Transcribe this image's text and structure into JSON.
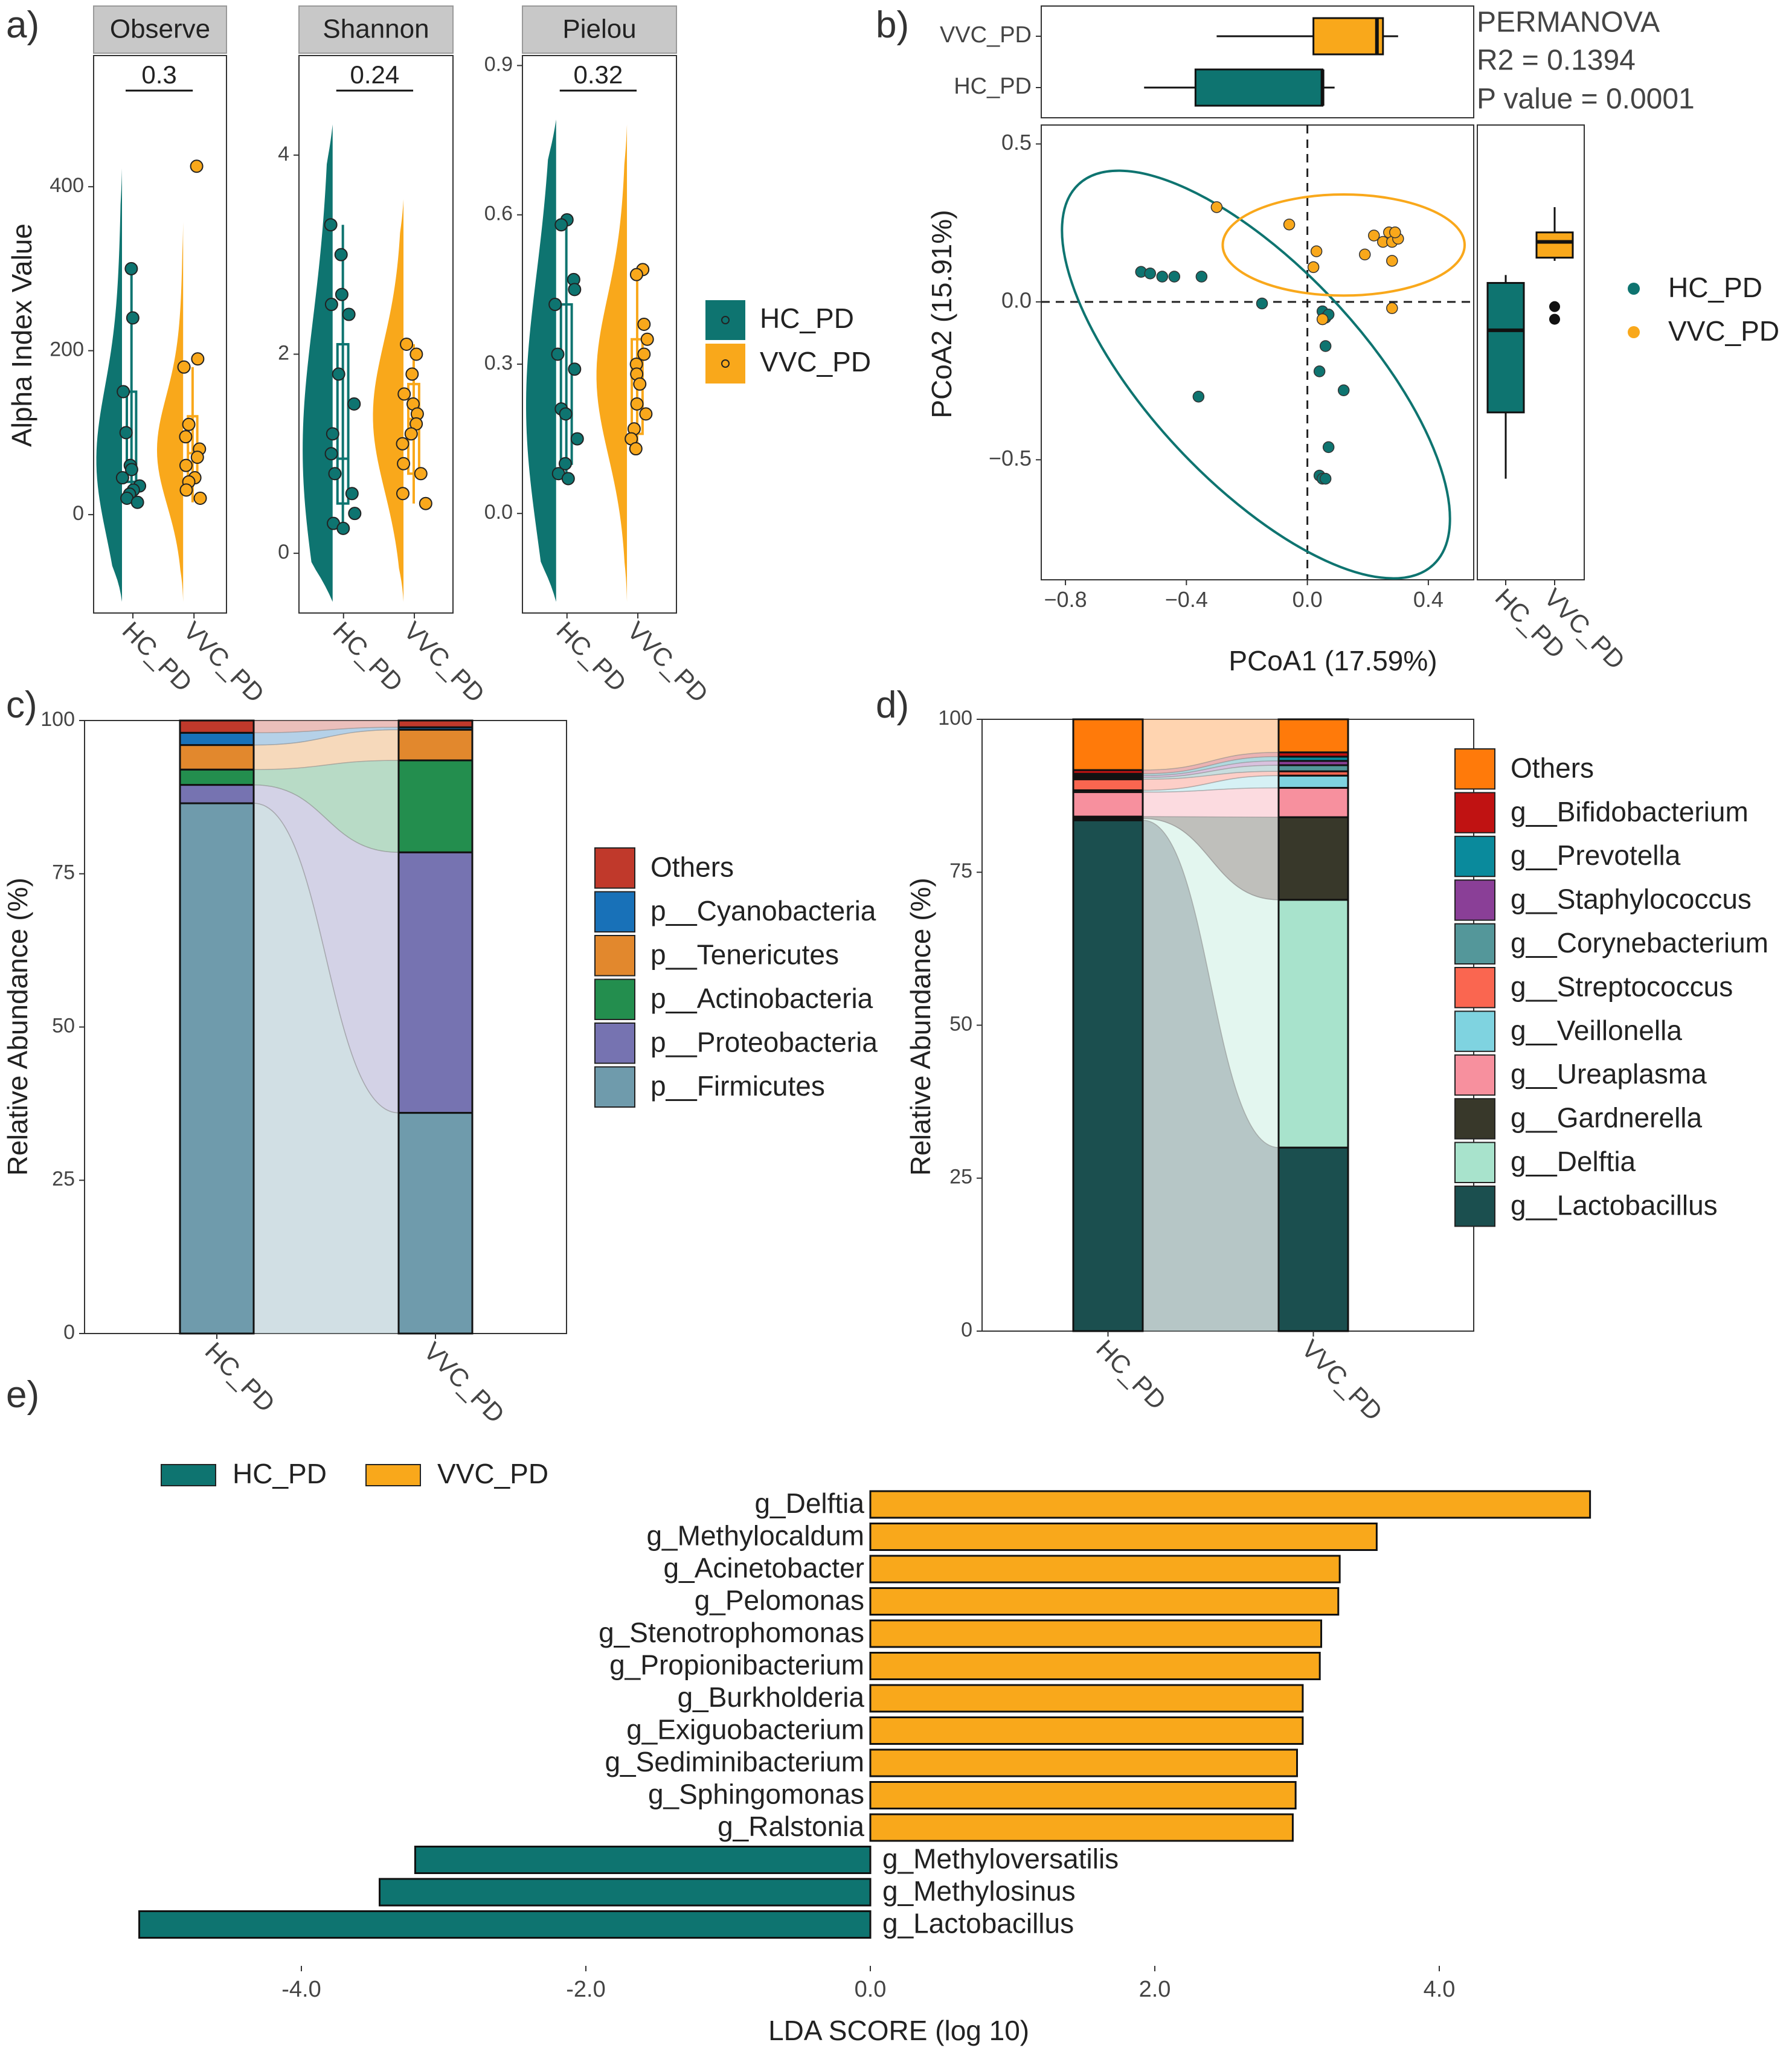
{
  "colors": {
    "hc": "#0e7470",
    "vvc": "#f9a81b",
    "hc_dark": "#0b5c58"
  },
  "panels": {
    "a": "a)",
    "b": "b)",
    "c": "c)",
    "d": "d)",
    "e": "e)"
  },
  "chart_data": [
    {
      "id": "a",
      "type": "violin-box",
      "ylabel": "Alpha Index Value",
      "groups": [
        "HC_PD",
        "VVC_PD"
      ],
      "legend": [
        {
          "name": "HC_PD",
          "color": "#0e7470"
        },
        {
          "name": "VVC_PD",
          "color": "#f9a81b"
        }
      ],
      "facets": [
        {
          "title": "Observe",
          "pvalue": "0.3",
          "ylim": [
            -120,
            560
          ],
          "ticks": [
            0,
            200,
            400
          ],
          "tick_labels": [
            "0",
            "200",
            "400"
          ],
          "box": {
            "HC_PD": [
              20,
              40,
              60,
              150,
              300
            ],
            "VVC_PD": [
              15,
              40,
              75,
              120,
              180
            ]
          },
          "points": {
            "HC_PD": [
              300,
              240,
              150,
              100,
              60,
              55,
              45,
              35,
              30,
              25,
              20,
              15
            ],
            "VVC_PD": [
              425,
              190,
              180,
              110,
              95,
              80,
              70,
              60,
              45,
              40,
              30,
              20
            ]
          }
        },
        {
          "title": "Shannon",
          "pvalue": "0.24",
          "ylim": [
            -0.6,
            5.0
          ],
          "ticks": [
            0,
            2,
            4
          ],
          "tick_labels": [
            "0",
            "2",
            "4"
          ],
          "box": {
            "HC_PD": [
              0.3,
              0.5,
              0.95,
              2.1,
              3.3
            ],
            "VVC_PD": [
              0.5,
              0.8,
              1.35,
              1.7,
              2.1
            ]
          },
          "points": {
            "HC_PD": [
              3.3,
              3.0,
              2.6,
              2.5,
              2.4,
              1.8,
              1.5,
              1.2,
              1.0,
              0.8,
              0.6,
              0.4,
              0.3,
              0.25
            ],
            "VVC_PD": [
              2.1,
              2.0,
              1.8,
              1.6,
              1.5,
              1.4,
              1.3,
              1.2,
              1.1,
              0.9,
              0.8,
              0.6,
              0.5
            ]
          }
        },
        {
          "title": "Pielou",
          "pvalue": "0.32",
          "ylim": [
            -0.2,
            0.92
          ],
          "ticks": [
            0.0,
            0.3,
            0.6,
            0.9
          ],
          "tick_labels": [
            "0.0",
            "0.3",
            "0.6",
            "0.9"
          ],
          "box": {
            "HC_PD": [
              0.07,
              0.1,
              0.2,
              0.42,
              0.59
            ],
            "VVC_PD": [
              0.12,
              0.16,
              0.27,
              0.35,
              0.49
            ]
          },
          "points": {
            "HC_PD": [
              0.59,
              0.58,
              0.47,
              0.45,
              0.42,
              0.32,
              0.29,
              0.21,
              0.2,
              0.15,
              0.1,
              0.08,
              0.07
            ],
            "VVC_PD": [
              0.49,
              0.48,
              0.38,
              0.35,
              0.32,
              0.3,
              0.28,
              0.26,
              0.22,
              0.2,
              0.17,
              0.15,
              0.13
            ]
          }
        }
      ]
    },
    {
      "id": "b",
      "type": "scatter",
      "title": "PERMANOVA",
      "stat_r2": "R2 = 0.1394",
      "stat_p": "P value = 0.0001",
      "xlabel": "PCoA1 (17.59%)",
      "ylabel": "PCoA2 (15.91%)",
      "xlim": [
        -0.88,
        0.55
      ],
      "ylim": [
        -0.88,
        0.56
      ],
      "xticks": [
        -0.8,
        -0.4,
        0.0,
        0.4
      ],
      "xtick_labels": [
        "−0.8",
        "−0.4",
        "0.0",
        "0.4"
      ],
      "yticks": [
        -0.5,
        0.0,
        0.5
      ],
      "ytick_labels": [
        "−0.5",
        "0.0",
        "0.5"
      ],
      "groups": [
        "HC_PD",
        "VVC_PD"
      ],
      "series": [
        {
          "name": "HC_PD",
          "points": [
            [
              -0.55,
              0.095
            ],
            [
              -0.52,
              0.09
            ],
            [
              -0.48,
              0.08
            ],
            [
              -0.44,
              0.08
            ],
            [
              -0.35,
              0.08
            ],
            [
              -0.36,
              -0.3
            ],
            [
              -0.15,
              -0.005
            ],
            [
              0.05,
              -0.03
            ],
            [
              0.06,
              -0.05
            ],
            [
              0.07,
              -0.04
            ],
            [
              0.06,
              -0.14
            ],
            [
              0.04,
              -0.22
            ],
            [
              0.12,
              -0.28
            ],
            [
              0.07,
              -0.46
            ],
            [
              0.04,
              -0.55
            ],
            [
              0.05,
              -0.56
            ],
            [
              0.06,
              -0.56
            ]
          ]
        },
        {
          "name": "VVC_PD",
          "points": [
            [
              -0.3,
              0.3
            ],
            [
              -0.06,
              0.245
            ],
            [
              0.03,
              0.16
            ],
            [
              0.02,
              0.11
            ],
            [
              0.05,
              -0.055
            ],
            [
              0.19,
              0.15
            ],
            [
              0.22,
              0.21
            ],
            [
              0.25,
              0.19
            ],
            [
              0.27,
              0.22
            ],
            [
              0.28,
              0.19
            ],
            [
              0.3,
              0.2
            ],
            [
              0.29,
              0.22
            ],
            [
              0.28,
              0.13
            ],
            [
              0.28,
              -0.02
            ]
          ]
        }
      ],
      "ellipses": [
        {
          "name": "HC_PD",
          "cx": -0.17,
          "cy": -0.23,
          "rx": 0.86,
          "ry": 0.34,
          "angle_deg": -47
        },
        {
          "name": "VVC_PD",
          "cx": 0.12,
          "cy": 0.18,
          "rx": 0.4,
          "ry": 0.16,
          "angle_deg": 0
        }
      ],
      "box_x": {
        "HC_PD": [
          -0.54,
          -0.37,
          0.05,
          0.05,
          0.09
        ],
        "VVC_PD": [
          -0.3,
          0.02,
          0.23,
          0.25,
          0.3
        ]
      },
      "box_y": {
        "HC_PD": [
          -0.56,
          -0.35,
          -0.09,
          0.06,
          0.085
        ],
        "VVC_PD": [
          0.13,
          0.14,
          0.19,
          0.22,
          0.3
        ]
      },
      "box_y_outliers": {
        "VVC_PD": [
          -0.015,
          -0.055
        ]
      }
    },
    {
      "id": "c",
      "type": "stacked-bar-alluvial",
      "ylabel": "Relative Abundance (%)",
      "categories": [
        "HC_PD",
        "VVC_PD"
      ],
      "ylim": [
        0,
        100
      ],
      "yticks": [
        0,
        25,
        50,
        75,
        100
      ],
      "series": [
        {
          "name": "p__Firmicutes",
          "color": "#6f9bac",
          "values": [
            86.5,
            36
          ]
        },
        {
          "name": "p__Proteobacteria",
          "color": "#7673b1",
          "values": [
            3,
            42.5
          ]
        },
        {
          "name": "p__Actinobacteria",
          "color": "#238e4e",
          "values": [
            2.5,
            15
          ]
        },
        {
          "name": "p__Tenericutes",
          "color": "#e2882d",
          "values": [
            4,
            5
          ]
        },
        {
          "name": "p__Cyanobacteria",
          "color": "#1871b8",
          "values": [
            2,
            0.4
          ]
        },
        {
          "name": "Others",
          "color": "#c0392b",
          "values": [
            2,
            1.1
          ]
        }
      ]
    },
    {
      "id": "d",
      "type": "stacked-bar-alluvial",
      "ylabel": "Relative Abundance (%)",
      "categories": [
        "HC_PD",
        "VVC_PD"
      ],
      "ylim": [
        0,
        100
      ],
      "yticks": [
        0,
        25,
        50,
        75,
        100
      ],
      "series": [
        {
          "name": "g__Lactobacillus",
          "color": "#1b4f4f",
          "values": [
            83.5,
            30
          ]
        },
        {
          "name": "g__Delftia",
          "color": "#a8e3cc",
          "values": [
            0.3,
            40.5
          ]
        },
        {
          "name": "g__Gardnerella",
          "color": "#38382a",
          "values": [
            0.3,
            13.5
          ]
        },
        {
          "name": "g__Ureaplasma",
          "color": "#f7909e",
          "values": [
            4,
            4.8
          ]
        },
        {
          "name": "g__Veillonella",
          "color": "#7fd3e0",
          "values": [
            0.3,
            2
          ]
        },
        {
          "name": "g__Streptococcus",
          "color": "#fa6650",
          "values": [
            1.8,
            0.7
          ]
        },
        {
          "name": "g__Corynebacterium",
          "color": "#54979a",
          "values": [
            0.3,
            1
          ]
        },
        {
          "name": "g__Staphylococcus",
          "color": "#8a3f97",
          "values": [
            0.3,
            0.7
          ]
        },
        {
          "name": "g__Prevotella",
          "color": "#0a8a9c",
          "values": [
            0.3,
            0.7
          ]
        },
        {
          "name": "g__Bifidobacterium",
          "color": "#c01212",
          "values": [
            0.6,
            0.7
          ]
        },
        {
          "name": "Others",
          "color": "#ff7a0a",
          "values": [
            8.3,
            5.4
          ]
        }
      ]
    },
    {
      "id": "e",
      "type": "bar",
      "orientation": "horizontal",
      "xlabel": "LDA SCORE (log 10)",
      "xlim": [
        -5.3,
        5.05
      ],
      "xticks": [
        -4,
        -2,
        0,
        2,
        4
      ],
      "xtick_labels": [
        "-4.0",
        "-2.0",
        "0.0",
        "2.0",
        "4.0"
      ],
      "legend": [
        {
          "name": "HC_PD",
          "color": "#0e7470"
        },
        {
          "name": "VVC_PD",
          "color": "#f9a81b"
        }
      ],
      "categories": [
        "g_Delftia",
        "g_Methylocaldum",
        "g_Acinetobacter",
        "g_Pelomonas",
        "g_Stenotrophomonas",
        "g_Propionibacterium",
        "g_Burkholderia",
        "g_Exiguobacterium",
        "g_Sediminibacterium",
        "g_Sphingomonas",
        "g_Ralstonia",
        "g_Methyloversatilis",
        "g_Methylosinus",
        "g_Lactobacillus"
      ],
      "values": [
        5.06,
        3.56,
        3.3,
        3.29,
        3.17,
        3.16,
        3.04,
        3.04,
        3.0,
        2.99,
        2.97,
        -3.2,
        -3.45,
        -5.14
      ],
      "groups": [
        "VVC_PD",
        "VVC_PD",
        "VVC_PD",
        "VVC_PD",
        "VVC_PD",
        "VVC_PD",
        "VVC_PD",
        "VVC_PD",
        "VVC_PD",
        "VVC_PD",
        "VVC_PD",
        "HC_PD",
        "HC_PD",
        "HC_PD"
      ]
    }
  ]
}
